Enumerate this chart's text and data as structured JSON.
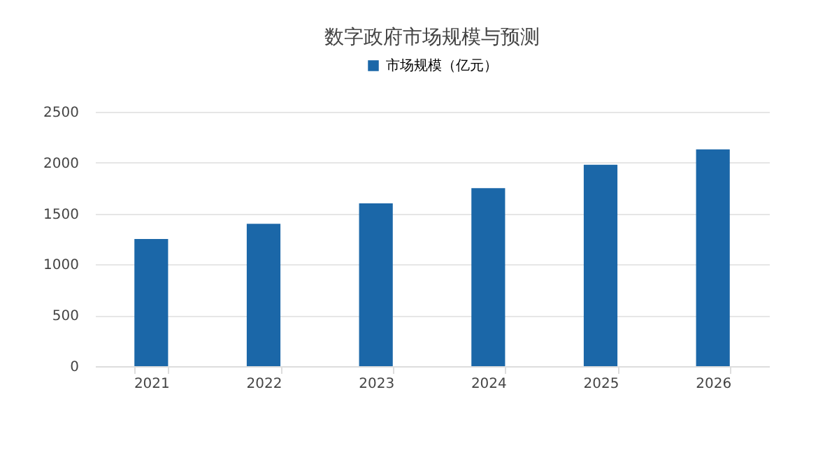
{
  "chart_data": {
    "type": "bar",
    "title": "数字政府市场规模与预测",
    "categories": [
      "2021",
      "2022",
      "2023",
      "2024",
      "2025",
      "2026"
    ],
    "series": [
      {
        "name": "市场规模（亿元）",
        "color": "#1b67a8",
        "values": [
          1250,
          1400,
          1600,
          1750,
          1980,
          2130
        ]
      }
    ],
    "ylim": [
      0,
      2500
    ],
    "yticks": [
      0,
      500,
      1000,
      1500,
      2000,
      2500
    ],
    "grid": "y",
    "legend": "top"
  }
}
